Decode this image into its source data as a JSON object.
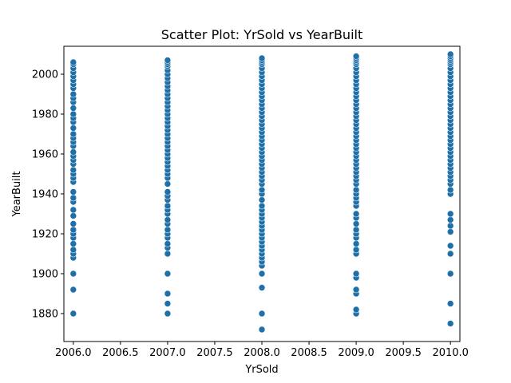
{
  "chart_data": {
    "type": "scatter",
    "title": "Scatter Plot: YrSold vs YearBuilt",
    "xlabel": "YrSold",
    "ylabel": "YearBuilt",
    "xlim": [
      2005.9,
      2010.1
    ],
    "ylim": [
      1866,
      2014
    ],
    "xticks": [
      "2006.0",
      "2006.5",
      "2007.0",
      "2007.5",
      "2008.0",
      "2008.5",
      "2009.0",
      "2009.5",
      "2010.0"
    ],
    "yticks": [
      "1880",
      "1900",
      "1920",
      "1940",
      "1960",
      "1980",
      "2000"
    ],
    "grid": false,
    "series": [
      {
        "color": "#1f6fa8",
        "points": [
          [
            2006,
            1880
          ],
          [
            2006,
            1892
          ],
          [
            2006,
            1900
          ],
          [
            2006,
            1908
          ],
          [
            2006,
            1910
          ],
          [
            2006,
            1912
          ],
          [
            2006,
            1915
          ],
          [
            2006,
            1918
          ],
          [
            2006,
            1920
          ],
          [
            2006,
            1922
          ],
          [
            2006,
            1925
          ],
          [
            2006,
            1929
          ],
          [
            2006,
            1932
          ],
          [
            2006,
            1936
          ],
          [
            2006,
            1938
          ],
          [
            2006,
            1941
          ],
          [
            2006,
            1946
          ],
          [
            2006,
            1948
          ],
          [
            2006,
            1950
          ],
          [
            2006,
            1952
          ],
          [
            2006,
            1955
          ],
          [
            2006,
            1957
          ],
          [
            2006,
            1959
          ],
          [
            2006,
            1961
          ],
          [
            2006,
            1964
          ],
          [
            2006,
            1966
          ],
          [
            2006,
            1968
          ],
          [
            2006,
            1970
          ],
          [
            2006,
            1973
          ],
          [
            2006,
            1976
          ],
          [
            2006,
            1978
          ],
          [
            2006,
            1980
          ],
          [
            2006,
            1983
          ],
          [
            2006,
            1986
          ],
          [
            2006,
            1988
          ],
          [
            2006,
            1990
          ],
          [
            2006,
            1993
          ],
          [
            2006,
            1995
          ],
          [
            2006,
            1997
          ],
          [
            2006,
            1999
          ],
          [
            2006,
            2001
          ],
          [
            2006,
            2003
          ],
          [
            2006,
            2005
          ],
          [
            2006,
            2006
          ],
          [
            2007,
            1880
          ],
          [
            2007,
            1885
          ],
          [
            2007,
            1890
          ],
          [
            2007,
            1900
          ],
          [
            2007,
            1910
          ],
          [
            2007,
            1913
          ],
          [
            2007,
            1915
          ],
          [
            2007,
            1918
          ],
          [
            2007,
            1920
          ],
          [
            2007,
            1922
          ],
          [
            2007,
            1925
          ],
          [
            2007,
            1927
          ],
          [
            2007,
            1930
          ],
          [
            2007,
            1932
          ],
          [
            2007,
            1934
          ],
          [
            2007,
            1937
          ],
          [
            2007,
            1939
          ],
          [
            2007,
            1941
          ],
          [
            2007,
            1945
          ],
          [
            2007,
            1948
          ],
          [
            2007,
            1950
          ],
          [
            2007,
            1952
          ],
          [
            2007,
            1954
          ],
          [
            2007,
            1956
          ],
          [
            2007,
            1958
          ],
          [
            2007,
            1960
          ],
          [
            2007,
            1962
          ],
          [
            2007,
            1964
          ],
          [
            2007,
            1966
          ],
          [
            2007,
            1968
          ],
          [
            2007,
            1970
          ],
          [
            2007,
            1972
          ],
          [
            2007,
            1974
          ],
          [
            2007,
            1976
          ],
          [
            2007,
            1978
          ],
          [
            2007,
            1980
          ],
          [
            2007,
            1982
          ],
          [
            2007,
            1984
          ],
          [
            2007,
            1986
          ],
          [
            2007,
            1988
          ],
          [
            2007,
            1990
          ],
          [
            2007,
            1992
          ],
          [
            2007,
            1994
          ],
          [
            2007,
            1996
          ],
          [
            2007,
            1998
          ],
          [
            2007,
            2000
          ],
          [
            2007,
            2002
          ],
          [
            2007,
            2004
          ],
          [
            2007,
            2005
          ],
          [
            2007,
            2006
          ],
          [
            2007,
            2007
          ],
          [
            2008,
            1872
          ],
          [
            2008,
            1880
          ],
          [
            2008,
            1893
          ],
          [
            2008,
            1900
          ],
          [
            2008,
            1904
          ],
          [
            2008,
            1906
          ],
          [
            2008,
            1908
          ],
          [
            2008,
            1910
          ],
          [
            2008,
            1912
          ],
          [
            2008,
            1914
          ],
          [
            2008,
            1916
          ],
          [
            2008,
            1918
          ],
          [
            2008,
            1920
          ],
          [
            2008,
            1922
          ],
          [
            2008,
            1924
          ],
          [
            2008,
            1926
          ],
          [
            2008,
            1928
          ],
          [
            2008,
            1930
          ],
          [
            2008,
            1932
          ],
          [
            2008,
            1934
          ],
          [
            2008,
            1937
          ],
          [
            2008,
            1940
          ],
          [
            2008,
            1942
          ],
          [
            2008,
            1945
          ],
          [
            2008,
            1947
          ],
          [
            2008,
            1949
          ],
          [
            2008,
            1951
          ],
          [
            2008,
            1953
          ],
          [
            2008,
            1955
          ],
          [
            2008,
            1957
          ],
          [
            2008,
            1959
          ],
          [
            2008,
            1961
          ],
          [
            2008,
            1963
          ],
          [
            2008,
            1965
          ],
          [
            2008,
            1967
          ],
          [
            2008,
            1969
          ],
          [
            2008,
            1971
          ],
          [
            2008,
            1973
          ],
          [
            2008,
            1975
          ],
          [
            2008,
            1977
          ],
          [
            2008,
            1979
          ],
          [
            2008,
            1981
          ],
          [
            2008,
            1983
          ],
          [
            2008,
            1985
          ],
          [
            2008,
            1987
          ],
          [
            2008,
            1989
          ],
          [
            2008,
            1991
          ],
          [
            2008,
            1993
          ],
          [
            2008,
            1995
          ],
          [
            2008,
            1997
          ],
          [
            2008,
            1999
          ],
          [
            2008,
            2001
          ],
          [
            2008,
            2003
          ],
          [
            2008,
            2005
          ],
          [
            2008,
            2006
          ],
          [
            2008,
            2007
          ],
          [
            2008,
            2008
          ],
          [
            2009,
            1880
          ],
          [
            2009,
            1882
          ],
          [
            2009,
            1890
          ],
          [
            2009,
            1892
          ],
          [
            2009,
            1898
          ],
          [
            2009,
            1900
          ],
          [
            2009,
            1910
          ],
          [
            2009,
            1912
          ],
          [
            2009,
            1915
          ],
          [
            2009,
            1918
          ],
          [
            2009,
            1920
          ],
          [
            2009,
            1922
          ],
          [
            2009,
            1925
          ],
          [
            2009,
            1928
          ],
          [
            2009,
            1930
          ],
          [
            2009,
            1934
          ],
          [
            2009,
            1936
          ],
          [
            2009,
            1938
          ],
          [
            2009,
            1940
          ],
          [
            2009,
            1942
          ],
          [
            2009,
            1945
          ],
          [
            2009,
            1947
          ],
          [
            2009,
            1949
          ],
          [
            2009,
            1951
          ],
          [
            2009,
            1953
          ],
          [
            2009,
            1955
          ],
          [
            2009,
            1957
          ],
          [
            2009,
            1959
          ],
          [
            2009,
            1961
          ],
          [
            2009,
            1963
          ],
          [
            2009,
            1965
          ],
          [
            2009,
            1967
          ],
          [
            2009,
            1969
          ],
          [
            2009,
            1971
          ],
          [
            2009,
            1973
          ],
          [
            2009,
            1975
          ],
          [
            2009,
            1977
          ],
          [
            2009,
            1979
          ],
          [
            2009,
            1981
          ],
          [
            2009,
            1983
          ],
          [
            2009,
            1985
          ],
          [
            2009,
            1987
          ],
          [
            2009,
            1989
          ],
          [
            2009,
            1991
          ],
          [
            2009,
            1993
          ],
          [
            2009,
            1995
          ],
          [
            2009,
            1997
          ],
          [
            2009,
            1999
          ],
          [
            2009,
            2001
          ],
          [
            2009,
            2003
          ],
          [
            2009,
            2005
          ],
          [
            2009,
            2006
          ],
          [
            2009,
            2007
          ],
          [
            2009,
            2008
          ],
          [
            2009,
            2009
          ],
          [
            2010,
            1875
          ],
          [
            2010,
            1885
          ],
          [
            2010,
            1900
          ],
          [
            2010,
            1910
          ],
          [
            2010,
            1914
          ],
          [
            2010,
            1921
          ],
          [
            2010,
            1924
          ],
          [
            2010,
            1927
          ],
          [
            2010,
            1930
          ],
          [
            2010,
            1940
          ],
          [
            2010,
            1942
          ],
          [
            2010,
            1945
          ],
          [
            2010,
            1947
          ],
          [
            2010,
            1949
          ],
          [
            2010,
            1951
          ],
          [
            2010,
            1953
          ],
          [
            2010,
            1955
          ],
          [
            2010,
            1957
          ],
          [
            2010,
            1959
          ],
          [
            2010,
            1961
          ],
          [
            2010,
            1963
          ],
          [
            2010,
            1965
          ],
          [
            2010,
            1967
          ],
          [
            2010,
            1969
          ],
          [
            2010,
            1971
          ],
          [
            2010,
            1973
          ],
          [
            2010,
            1975
          ],
          [
            2010,
            1977
          ],
          [
            2010,
            1979
          ],
          [
            2010,
            1981
          ],
          [
            2010,
            1983
          ],
          [
            2010,
            1985
          ],
          [
            2010,
            1987
          ],
          [
            2010,
            1989
          ],
          [
            2010,
            1991
          ],
          [
            2010,
            1993
          ],
          [
            2010,
            1995
          ],
          [
            2010,
            1997
          ],
          [
            2010,
            1999
          ],
          [
            2010,
            2001
          ],
          [
            2010,
            2003
          ],
          [
            2010,
            2005
          ],
          [
            2010,
            2006
          ],
          [
            2010,
            2007
          ],
          [
            2010,
            2008
          ],
          [
            2010,
            2009
          ],
          [
            2010,
            2010
          ]
        ]
      }
    ]
  }
}
